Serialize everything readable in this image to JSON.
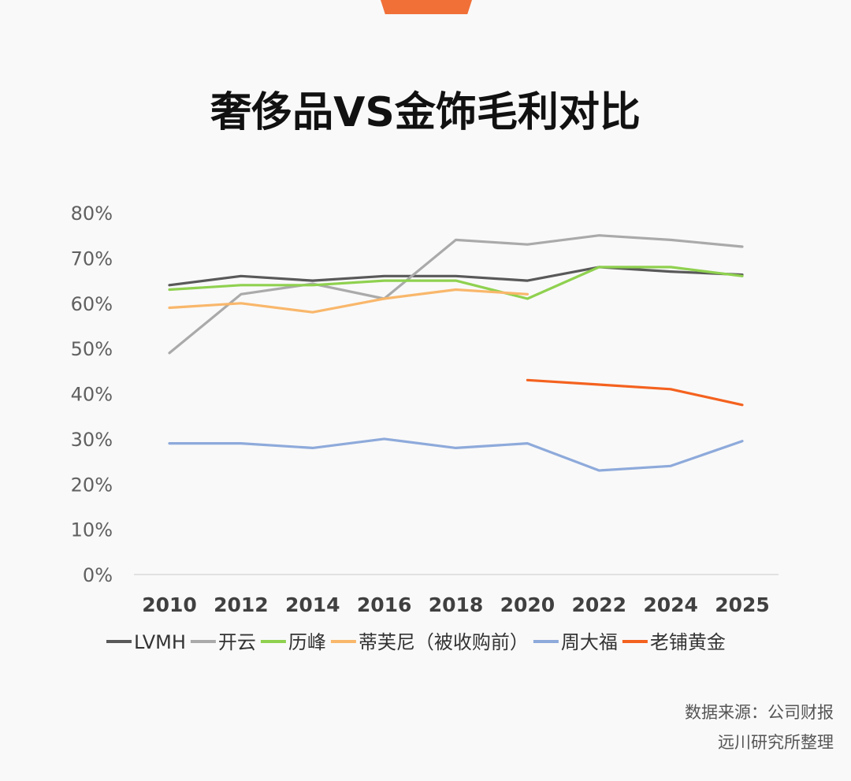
{
  "title": "奢侈品VS金饰毛利对比",
  "source": {
    "line1": "数据来源：公司财报",
    "line2": "远川研究所整理"
  },
  "chart_data": {
    "type": "line",
    "title": "奢侈品VS金饰毛利对比",
    "categories": [
      "2010",
      "2012",
      "2014",
      "2016",
      "2018",
      "2020",
      "2022",
      "2024",
      "2025"
    ],
    "y_ticks": [
      "0%",
      "10%",
      "20%",
      "30%",
      "40%",
      "50%",
      "60%",
      "70%",
      "80%"
    ],
    "ylim": [
      0,
      80
    ],
    "grid": false,
    "legend_position": "bottom",
    "series": [
      {
        "name": "LVMH",
        "color": "#595959",
        "values": [
          64,
          66,
          65,
          66,
          66,
          65,
          68,
          67,
          66.3
        ]
      },
      {
        "name": "开云",
        "color": "#aaaaaa",
        "values": [
          49,
          62,
          64.3,
          61,
          74,
          73,
          75,
          74,
          72.5
        ]
      },
      {
        "name": "历峰",
        "color": "#8fd14f",
        "values": [
          63,
          64,
          64,
          65,
          65,
          61,
          68,
          68,
          66
        ]
      },
      {
        "name": "蒂芙尼（被收购前）",
        "color": "#f9b76b",
        "values": [
          59,
          60,
          58,
          61,
          63,
          62,
          null,
          null,
          null
        ]
      },
      {
        "name": "周大福",
        "color": "#8eaadb",
        "values": [
          29,
          29,
          28,
          30,
          28,
          29,
          23,
          24,
          29.5
        ]
      },
      {
        "name": "老铺黄金",
        "color": "#f4621f",
        "values": [
          null,
          null,
          null,
          null,
          null,
          43,
          42,
          41,
          37.5
        ]
      }
    ]
  }
}
